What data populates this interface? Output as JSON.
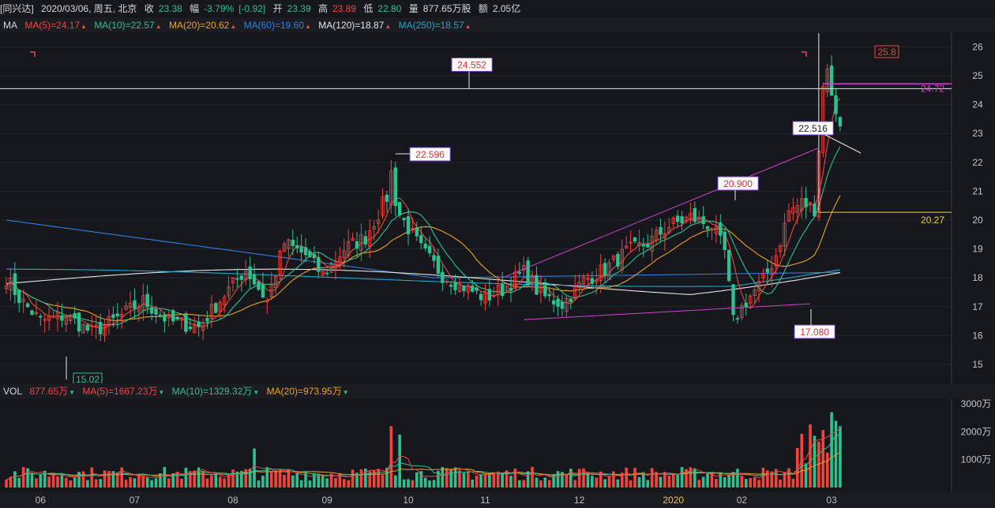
{
  "header": {
    "name": "[同兴达]",
    "date": "2020/03/06, 周五, 北京",
    "close_label": "收",
    "close": "23.38",
    "change_label": "幅",
    "change": "-3.79%",
    "change_abs": "[-0.92]",
    "open_label": "开",
    "open": "23.39",
    "high_label": "高",
    "high": "23.89",
    "low_label": "低",
    "low": "22.80",
    "vol_label": "量",
    "volume": "877.65万股",
    "amount_label": "额",
    "amount": "2.05亿"
  },
  "ma_bar": {
    "label": "MA",
    "items": [
      {
        "text": "MA(5)=24.17",
        "color": "#f2443c",
        "dir": "up"
      },
      {
        "text": "MA(10)=22.57",
        "color": "#2fc08e",
        "dir": "up"
      },
      {
        "text": "MA(20)=20.62",
        "color": "#f0a020",
        "dir": "up"
      },
      {
        "text": "MA(60)=19.60",
        "color": "#2f7fe0",
        "dir": "up"
      },
      {
        "text": "MA(120)=18.87",
        "color": "#e6e6e6",
        "dir": "up"
      },
      {
        "text": "MA(250)=18.57",
        "color": "#20a8c8",
        "dir": "up"
      }
    ]
  },
  "vol_bar": {
    "label": "VOL",
    "items": [
      {
        "text": "877.65万",
        "color": "#f2443c",
        "dir": "dn"
      },
      {
        "text": "MA(5)=1667.23万",
        "color": "#f2443c",
        "dir": "dn"
      },
      {
        "text": "MA(10)=1329.32万",
        "color": "#2fc08e",
        "dir": "dn"
      },
      {
        "text": "MA(20)=973.95万",
        "color": "#f0a020",
        "dir": "dn"
      }
    ]
  },
  "chart_data": {
    "type": "candlestick",
    "price_ylim": [
      14.7,
      26.7
    ],
    "price_ticks": [
      "15",
      "16",
      "17",
      "18",
      "19",
      "20",
      "21",
      "22",
      "23",
      "24",
      "25",
      "26"
    ],
    "volume_ticks": [
      "1000万",
      "2000万",
      "3000万"
    ],
    "volume_ylim_wan": [
      0,
      3000
    ],
    "x_labels": [
      {
        "text": "06",
        "i": 8
      },
      {
        "text": "07",
        "i": 30
      },
      {
        "text": "08",
        "i": 53
      },
      {
        "text": "09",
        "i": 75
      },
      {
        "text": "10",
        "i": 94
      },
      {
        "text": "11",
        "i": 112
      },
      {
        "text": "12",
        "i": 134
      },
      {
        "text": "2020",
        "i": 156,
        "highlight": true
      },
      {
        "text": "02",
        "i": 172
      },
      {
        "text": "03",
        "i": 193
      }
    ],
    "annotations": {
      "horizontal_line": "24.552",
      "right_line_magenta": "24.72",
      "right_line_yellow": "20.27",
      "high_peak": "22.596",
      "low_mark": "15.02",
      "mid_high": "20.900",
      "low_feb": "17.080",
      "recent": "22.516",
      "recent_high": "25.8"
    },
    "ohlc": [],
    "volume": []
  }
}
